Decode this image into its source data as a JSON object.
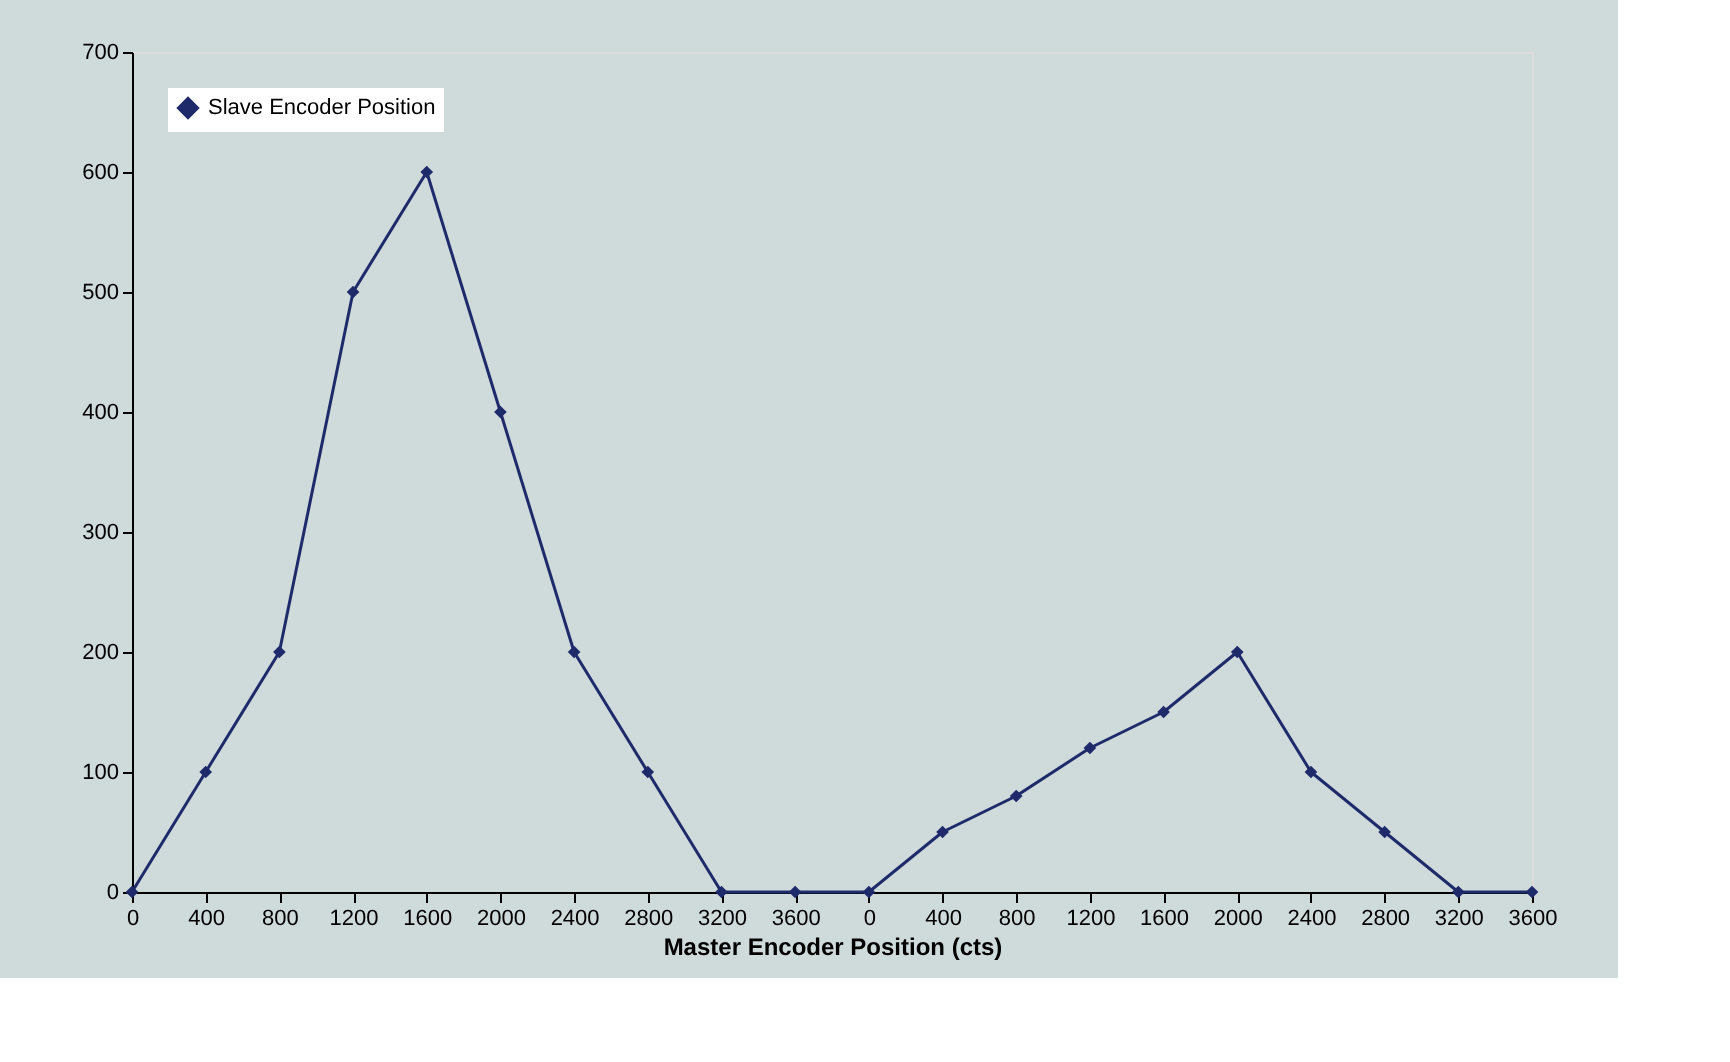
{
  "chart_data": {
    "type": "line",
    "xlabel": "Master Encoder Position (cts)",
    "categories": [
      "0",
      "400",
      "800",
      "1200",
      "1600",
      "2000",
      "2400",
      "2800",
      "3200",
      "3600",
      "0",
      "400",
      "800",
      "1200",
      "1600",
      "2000",
      "2400",
      "2800",
      "3200",
      "3600"
    ],
    "series": [
      {
        "name": "Slave Encoder Position",
        "color": "#1f2a6b",
        "values": [
          0,
          100,
          200,
          500,
          600,
          400,
          200,
          100,
          0,
          0,
          0,
          50,
          80,
          120,
          150,
          200,
          100,
          50,
          0,
          0
        ]
      }
    ],
    "ylim": [
      0,
      700
    ],
    "yticks": [
      0,
      100,
      200,
      300,
      400,
      500,
      600,
      700
    ],
    "grid": false,
    "legend": "top left",
    "marker": "diamond",
    "line_style": "solid"
  }
}
